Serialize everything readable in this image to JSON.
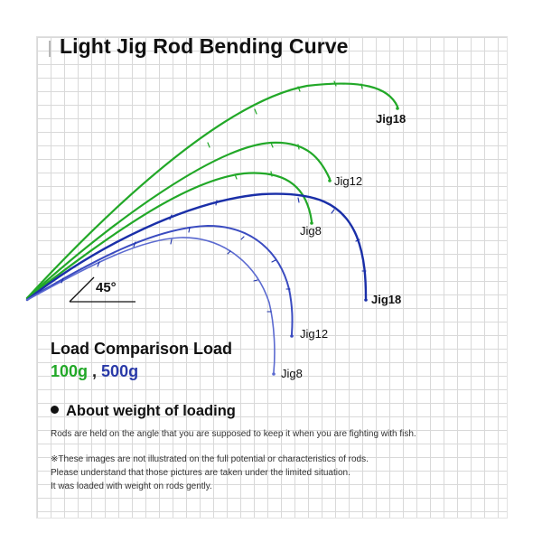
{
  "title": "Light Jig Rod Bending Curve",
  "angle_label": "45°",
  "labels": {
    "jig18_green": "Jig18",
    "jig12_green": "Jig12",
    "jig8_green": "Jig8",
    "jig18_blue": "Jig18",
    "jig12_blue": "Jig12",
    "jig8_blue": "Jig8"
  },
  "load": {
    "title": "Load Comparison Load",
    "green_value": "100g",
    "separator": " , ",
    "blue_value": "500g"
  },
  "about": {
    "title": "About weight of loading",
    "line1": "Rods are held on the angle that you are supposed to keep it when you are fighting with fish.",
    "note1": "※These images are not illustrated on the full potential or characteristics of rods.",
    "note2": "Please understand that those pictures are taken under the limited situation.",
    "note3": "It was loaded with weight on rods gently."
  },
  "colors": {
    "green_load": "#22a828",
    "blue_load": "#1a2fa8"
  }
}
